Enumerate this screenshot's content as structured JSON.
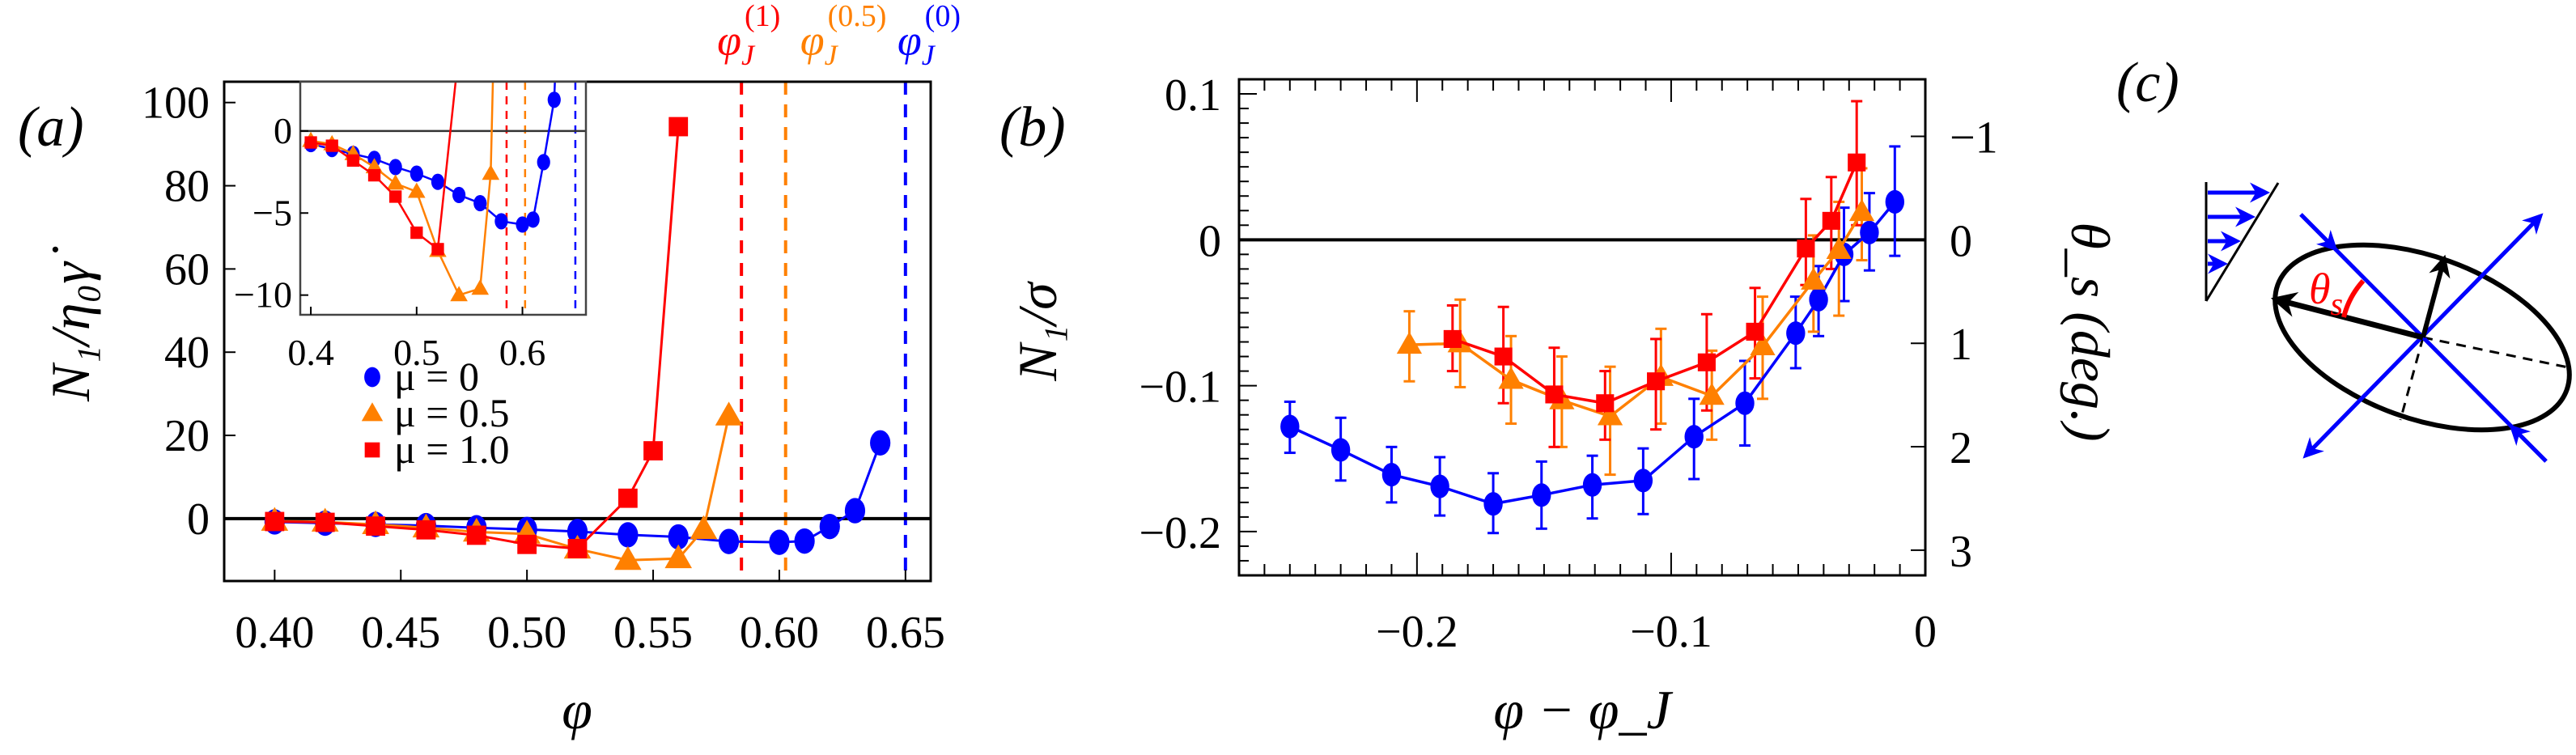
{
  "chart_data": [
    {
      "panel": "a",
      "type": "line",
      "panel_label": "(a)",
      "xlabel": "φ",
      "ylabel": "N₁/η₀γ̇",
      "xlim": [
        0.38,
        0.66
      ],
      "ylim": [
        -15,
        105
      ],
      "xticks": [
        0.4,
        0.45,
        0.5,
        0.55,
        0.6,
        0.65
      ],
      "xtick_labels": [
        "0.40",
        "0.45",
        "0.50",
        "0.55",
        "0.60",
        "0.65"
      ],
      "yticks": [
        0,
        20,
        40,
        60,
        80,
        100
      ],
      "ytick_labels": [
        "0",
        "20",
        "40",
        "60",
        "80",
        "100"
      ],
      "zero_line": true,
      "grid": false,
      "legend": {
        "placement": "center-left",
        "entries": [
          {
            "label": "μ = 0",
            "marker": "circle",
            "color": "#0000ff"
          },
          {
            "label": "μ = 0.5",
            "marker": "triangle",
            "color": "#ff8000"
          },
          {
            "label": "μ = 1.0",
            "marker": "square",
            "color": "#ff0000"
          }
        ]
      },
      "series": [
        {
          "name": "μ = 0",
          "color": "#0000ff",
          "marker": "circle",
          "x": [
            0.4,
            0.42,
            0.44,
            0.46,
            0.48,
            0.5,
            0.52,
            0.54,
            0.56,
            0.58,
            0.6,
            0.61,
            0.62,
            0.63,
            0.64
          ],
          "y": [
            -0.8,
            -1.1,
            -1.4,
            -1.7,
            -2.2,
            -2.6,
            -3.1,
            -3.9,
            -4.4,
            -5.5,
            -5.7,
            -5.4,
            -1.9,
            1.9,
            18.2
          ]
        },
        {
          "name": "μ = 0.5",
          "color": "#ff8000",
          "marker": "triangle",
          "x": [
            0.4,
            0.42,
            0.44,
            0.46,
            0.48,
            0.5,
            0.52,
            0.54,
            0.56,
            0.57,
            0.58
          ],
          "y": [
            -0.6,
            -0.8,
            -1.4,
            -2.2,
            -3.2,
            -3.7,
            -7.3,
            -10.0,
            -9.6,
            -2.6,
            24.7
          ]
        },
        {
          "name": "μ = 1.0",
          "color": "#ff0000",
          "marker": "square",
          "x": [
            0.4,
            0.42,
            0.44,
            0.46,
            0.48,
            0.5,
            0.52,
            0.54,
            0.55,
            0.56
          ],
          "y": [
            -0.7,
            -0.9,
            -1.8,
            -2.7,
            -4.0,
            -6.2,
            -7.2,
            4.9,
            16.3,
            94.2
          ]
        }
      ],
      "vlines": [
        {
          "label": "φ_J^(1)",
          "base": "φ",
          "sub": "J",
          "sup": "(1)",
          "x": 0.585,
          "color": "#ff0000",
          "style": "dashed"
        },
        {
          "label": "φ_J^(0.5)",
          "base": "φ",
          "sub": "J",
          "sup": "(0.5)",
          "x": 0.6025,
          "color": "#ff8000",
          "style": "dashed"
        },
        {
          "label": "φ_J^(0)",
          "base": "φ",
          "sub": "J",
          "sup": "(0)",
          "x": 0.65,
          "color": "#0000ff",
          "style": "dashed"
        }
      ],
      "inset": {
        "type": "line",
        "placement": "top-left",
        "xlim": [
          0.39,
          0.66
        ],
        "ylim": [
          -11.2,
          3.0
        ],
        "xticks": [
          0.4,
          0.5,
          0.6
        ],
        "xtick_labels": [
          "0.4",
          "0.5",
          "0.6"
        ],
        "yticks": [
          0,
          -5,
          -10
        ],
        "ytick_labels": [
          "0",
          "−5",
          "−10"
        ],
        "zero_line": true,
        "series_ref": "same as main series, clipped to inset range"
      }
    },
    {
      "panel": "b",
      "type": "line",
      "panel_label": "(b)",
      "xlabel": "φ − φ_J",
      "ylabel": "N₁/σ",
      "ylabel_right": "θ_s (deg.)",
      "xlim": [
        -0.27,
        0.0
      ],
      "ylim": [
        -0.23,
        0.11
      ],
      "xticks": [
        -0.2,
        -0.1,
        0
      ],
      "xtick_labels": [
        "−0.2",
        "−0.1",
        "0"
      ],
      "yticks": [
        -0.2,
        -0.1,
        0,
        0.1
      ],
      "ytick_labels": [
        "−0.2",
        "−0.1",
        "0",
        "0.1"
      ],
      "right_yticks_deg": [
        -1,
        0,
        1,
        2,
        3
      ],
      "right_ytick_labels": [
        "−1",
        "0",
        "1",
        "2",
        "3"
      ],
      "right_axis_deg_per_unit": -14.1,
      "zero_line": true,
      "grid": false,
      "series": [
        {
          "name": "μ = 0",
          "color": "#0000ff",
          "marker": "circle",
          "x": [
            -0.25,
            -0.23,
            -0.21,
            -0.191,
            -0.17,
            -0.151,
            -0.131,
            -0.111,
            -0.091,
            -0.071,
            -0.051,
            -0.042,
            -0.032,
            -0.022,
            -0.012
          ],
          "y": [
            -0.128,
            -0.144,
            -0.161,
            -0.169,
            -0.181,
            -0.175,
            -0.168,
            -0.165,
            -0.135,
            -0.112,
            -0.064,
            -0.041,
            -0.01,
            0.005,
            0.026
          ],
          "err_hi": [
            0.017,
            0.022,
            0.019,
            0.02,
            0.021,
            0.023,
            0.02,
            0.022,
            0.026,
            0.029,
            0.025,
            0.023,
            0.032,
            0.027,
            0.038
          ],
          "err_lo": [
            0.018,
            0.021,
            0.019,
            0.02,
            0.02,
            0.023,
            0.023,
            0.023,
            0.029,
            0.029,
            0.024,
            0.025,
            0.032,
            0.026,
            0.037
          ]
        },
        {
          "name": "μ = 0.5",
          "color": "#ff8000",
          "marker": "triangle",
          "x": [
            -0.203,
            -0.183,
            -0.163,
            -0.143,
            -0.124,
            -0.104,
            -0.084,
            -0.064,
            -0.044,
            -0.034,
            -0.025
          ],
          "y": [
            -0.072,
            -0.071,
            -0.096,
            -0.11,
            -0.121,
            -0.094,
            -0.107,
            -0.073,
            -0.028,
            -0.007,
            0.019
          ],
          "err_hi": [
            0.023,
            0.03,
            0.03,
            0.03,
            0.034,
            0.033,
            0.031,
            0.034,
            0.031,
            0.033,
            0.03
          ],
          "err_lo": [
            0.025,
            0.03,
            0.03,
            0.032,
            0.04,
            0.032,
            0.03,
            0.036,
            0.035,
            0.045,
            0.033
          ]
        },
        {
          "name": "μ = 1.0",
          "color": "#ff0000",
          "marker": "square",
          "x": [
            -0.186,
            -0.166,
            -0.146,
            -0.126,
            -0.106,
            -0.086,
            -0.067,
            -0.047,
            -0.037,
            -0.027
          ],
          "y": [
            -0.068,
            -0.08,
            -0.106,
            -0.112,
            -0.097,
            -0.084,
            -0.063,
            -0.006,
            0.013,
            0.053
          ],
          "err_hi": [
            0.023,
            0.034,
            0.032,
            0.022,
            0.029,
            0.033,
            0.03,
            0.034,
            0.03,
            0.042
          ],
          "err_lo": [
            0.022,
            0.032,
            0.036,
            0.025,
            0.033,
            0.033,
            0.032,
            0.025,
            0.033,
            0.043
          ]
        }
      ]
    }
  ],
  "diagram": {
    "panel_label": "(c)",
    "angle_label_base": "θ",
    "angle_label_sub": "s",
    "colors": {
      "flow": "#0000ff",
      "ellipse": "#000000",
      "angle": "#ff0000"
    }
  }
}
